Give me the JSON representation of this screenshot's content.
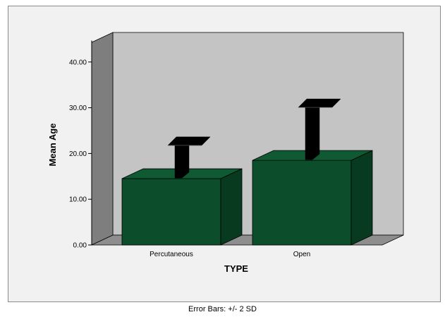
{
  "chart_data": {
    "type": "bar",
    "style": "3d",
    "categories": [
      "Percutaneous",
      "Open"
    ],
    "series": [
      {
        "values": [
          14.5,
          18.5
        ],
        "error_plus_2sd": [
          22.7,
          31.0
        ]
      }
    ],
    "xlabel": "TYPE",
    "ylabel": "Mean Age",
    "ylim": [
      0,
      45
    ],
    "yticks": [
      "0.00",
      "10.00",
      "20.00",
      "30.00",
      "40.00"
    ],
    "yticks_values": [
      0,
      10,
      20,
      30,
      40
    ],
    "grid": false,
    "colors": {
      "bar_front": "#0c4e2c",
      "bar_side": "#083a20",
      "bar_top": "#0f5a33",
      "back_wall": "#c4c4c4",
      "side_wall": "#7e7e7e",
      "floor": "#8e8e8e",
      "error_bar": "#000000"
    }
  },
  "caption": "Error Bars: +/- 2 SD"
}
